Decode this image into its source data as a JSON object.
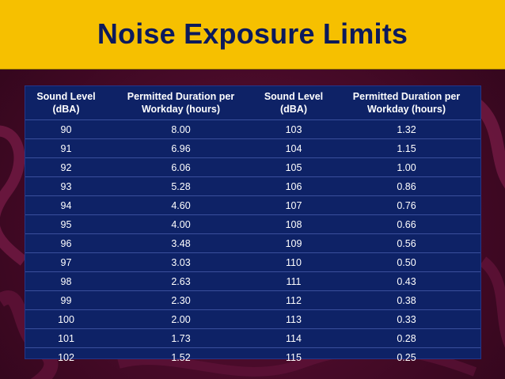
{
  "slide": {
    "title": "Noise Exposure Limits"
  },
  "table": {
    "headers": [
      "Sound Level (dBA)",
      "Permitted Duration per Workday (hours)",
      "Sound Level (dBA)",
      "Permitted Duration per Workday (hours)"
    ],
    "rows": [
      [
        "90",
        "8.00",
        "103",
        "1.32"
      ],
      [
        "91",
        "6.96",
        "104",
        "1.15"
      ],
      [
        "92",
        "6.06",
        "105",
        "1.00"
      ],
      [
        "93",
        "5.28",
        "106",
        "0.86"
      ],
      [
        "94",
        "4.60",
        "107",
        "0.76"
      ],
      [
        "95",
        "4.00",
        "108",
        "0.66"
      ],
      [
        "96",
        "3.48",
        "109",
        "0.56"
      ],
      [
        "97",
        "3.03",
        "110",
        "0.50"
      ],
      [
        "98",
        "2.63",
        "111",
        "0.43"
      ],
      [
        "99",
        "2.30",
        "112",
        "0.38"
      ],
      [
        "100",
        "2.00",
        "113",
        "0.33"
      ],
      [
        "101",
        "1.73",
        "114",
        "0.28"
      ],
      [
        "102",
        "1.52",
        "115",
        "0.25"
      ]
    ]
  },
  "colors": {
    "title_bar": "#f6c000",
    "title_text": "#0c1a5c",
    "table_bg": "#0e2266",
    "background": "#4a0a2a"
  }
}
